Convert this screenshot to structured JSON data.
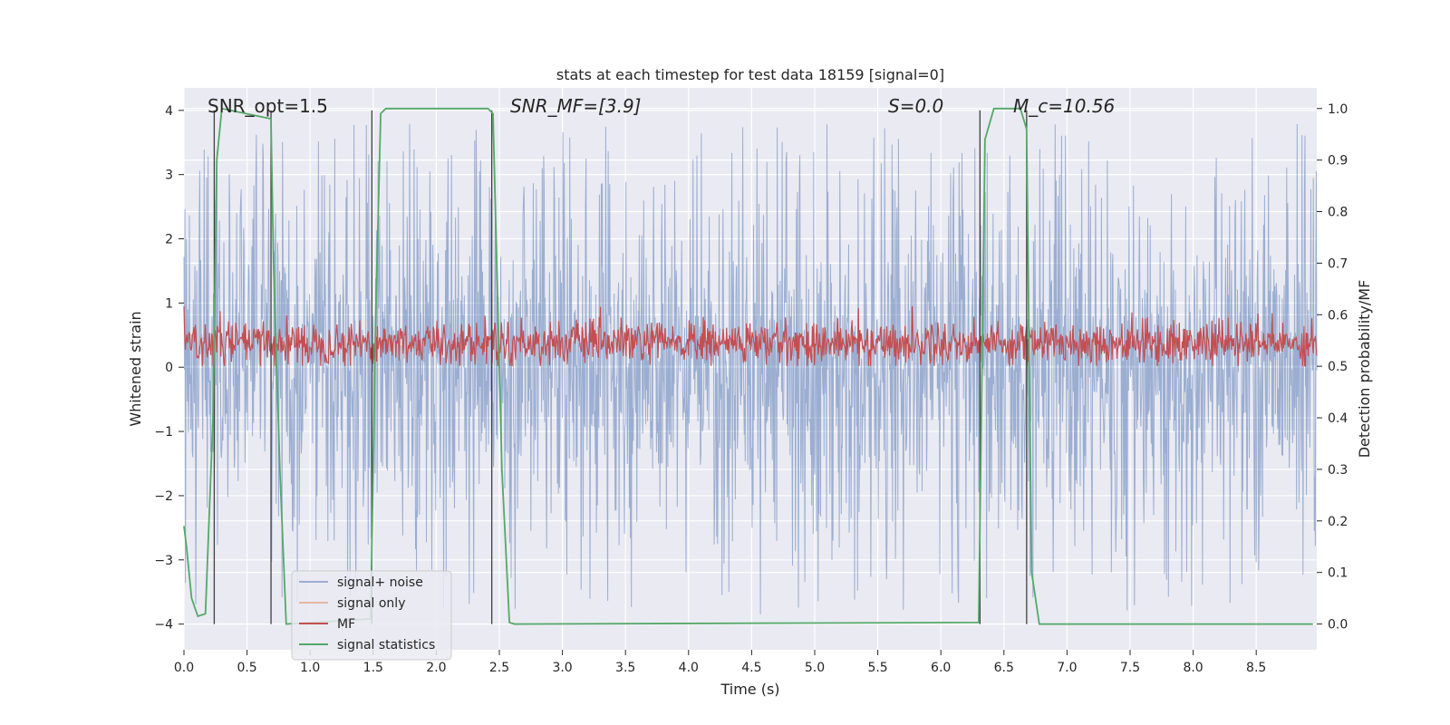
{
  "chart_data": {
    "type": "line",
    "title": "stats at each timestep for test data 18159 [signal=0]",
    "xlabel": "Time (s)",
    "ylabel_left": "Whitened strain",
    "ylabel_right": "Detection probability/MF",
    "xlim": [
      0,
      8.98
    ],
    "ylim_left": [
      -4.4,
      4.35
    ],
    "ylim_right": [
      -0.05,
      1.04
    ],
    "xticks": [
      "0.0",
      "0.5",
      "1.0",
      "1.5",
      "2.0",
      "2.5",
      "3.0",
      "3.5",
      "4.0",
      "4.5",
      "5.0",
      "5.5",
      "6.0",
      "6.5",
      "7.0",
      "7.5",
      "8.0",
      "8.5"
    ],
    "yticks_left": [
      "4",
      "3",
      "2",
      "1",
      "0",
      "−1",
      "−2",
      "−3",
      "−4"
    ],
    "yticks_right": [
      "1.0",
      "0.9",
      "0.8",
      "0.7",
      "0.6",
      "0.5",
      "0.4",
      "0.3",
      "0.2",
      "0.1",
      "0.0"
    ],
    "grid": true,
    "legend_position": "lower-left",
    "annotations": [
      {
        "text": "SNR_opt=1.5",
        "x": 0.2
      },
      {
        "text": "SNR_MF=[3.9]",
        "x": 2.6
      },
      {
        "text": "S=0.0",
        "x": 5.6
      },
      {
        "text": "M_c=10.56",
        "x": 6.6
      }
    ],
    "series": [
      {
        "name": "signal+ noise",
        "color": "#4c72b0",
        "axis": "left",
        "description_range": [
          -4.0,
          4.0
        ]
      },
      {
        "name": "signal only",
        "color": "#dd8452",
        "axis": "left",
        "values": []
      },
      {
        "name": "MF",
        "color": "#c44e52",
        "axis": "left",
        "description_range": [
          0.0,
          1.0
        ]
      },
      {
        "name": "signal statistics",
        "color": "#55a868",
        "axis": "right",
        "x": [
          0.0,
          0.02,
          0.06,
          0.11,
          0.17,
          0.23,
          0.26,
          0.3,
          0.69,
          0.71,
          0.76,
          0.81,
          1.48,
          1.52,
          1.56,
          1.6,
          2.41,
          2.45,
          2.52,
          2.58,
          2.62,
          6.3,
          6.35,
          6.42,
          6.63,
          6.68,
          6.72,
          6.78,
          8.95
        ],
        "values": [
          0.19,
          0.15,
          0.05,
          0.015,
          0.02,
          0.4,
          0.9,
          1.0,
          0.98,
          0.7,
          0.3,
          0.0,
          0.01,
          0.6,
          0.99,
          1.0,
          1.0,
          0.99,
          0.3,
          0.003,
          0.0,
          0.003,
          0.94,
          1.0,
          1.0,
          0.96,
          0.1,
          0.0,
          0.0
        ]
      }
    ],
    "vertical_lines": [
      0.24,
      0.69,
      1.49,
      2.44,
      6.31,
      6.68
    ],
    "vline_color": "#404040"
  }
}
